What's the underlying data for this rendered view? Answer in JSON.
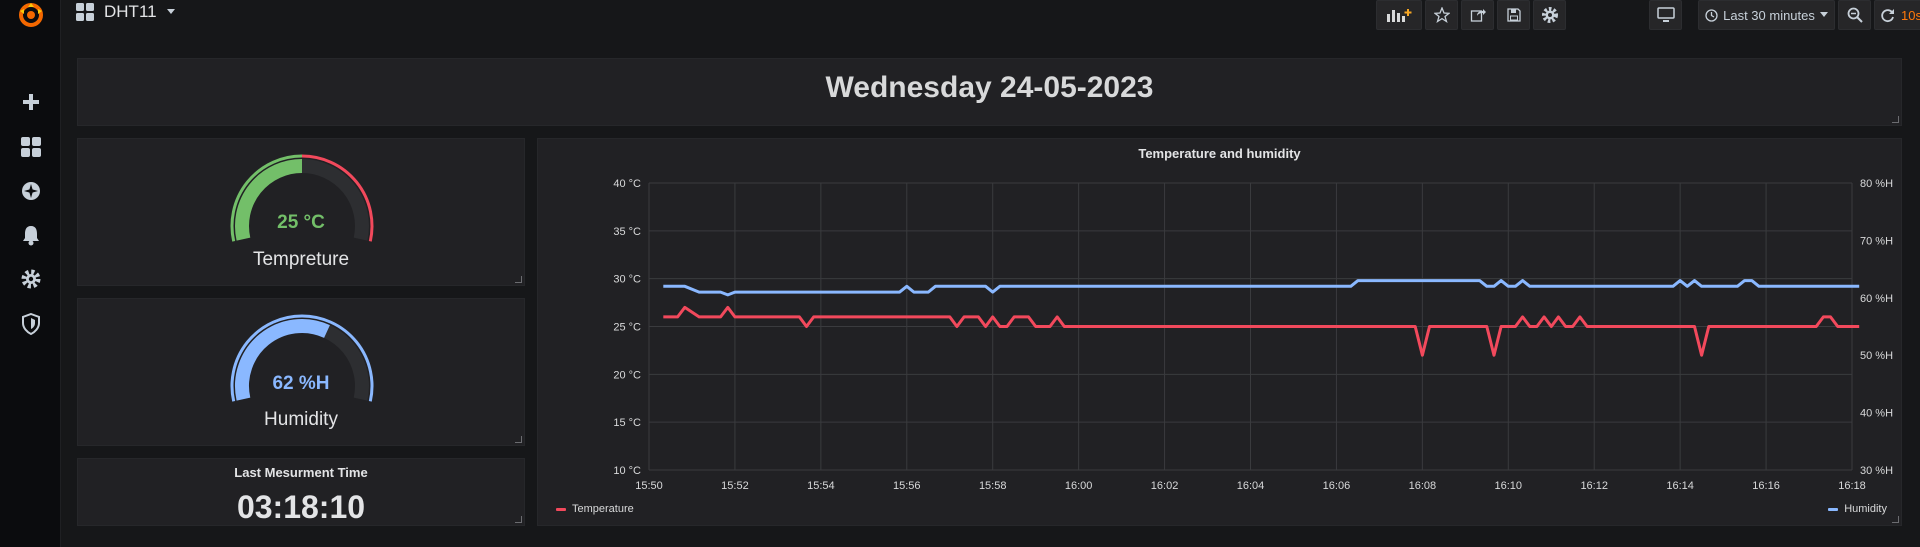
{
  "app": {
    "dashboard_title": "DHT11",
    "icons": [
      "grafana-logo",
      "plus-icon",
      "dashboards-icon",
      "explore-icon",
      "bell-icon",
      "gear-icon",
      "shield-icon"
    ]
  },
  "toolbar": {
    "time_range": "Last 30 minutes",
    "refresh_interval": "10s",
    "icons": [
      "add-panel-icon",
      "star-icon",
      "share-icon",
      "save-icon",
      "settings-icon",
      "tv-mode-icon",
      "clock-icon",
      "zoom-out-icon",
      "refresh-icon"
    ]
  },
  "date_panel": {
    "text": "Wednesday 24-05-2023"
  },
  "temperature_gauge": {
    "value": "25 °C",
    "label": "Tempreture",
    "fraction": 0.5,
    "color": "#73bf69",
    "threshold_color": "#f2495c"
  },
  "humidity_gauge": {
    "value": "62 %H",
    "label": "Humidity",
    "fraction": 0.62,
    "color": "#8ab8ff"
  },
  "last_time_panel": {
    "title": "Last Mesurment Time",
    "value": "03:18:10"
  },
  "colors": {
    "temperature": "#f2495c",
    "humidity": "#8ab8ff",
    "panel_bg": "#212124",
    "page_bg": "#161719"
  },
  "chart_data": {
    "type": "line",
    "title": "Temperature and humidity",
    "x_ticks": [
      "15:50",
      "15:52",
      "15:54",
      "15:56",
      "15:58",
      "16:00",
      "16:02",
      "16:04",
      "16:06",
      "16:08",
      "16:10",
      "16:12",
      "16:14",
      "16:16",
      "16:18"
    ],
    "x_range": [
      "15:50",
      "16:18"
    ],
    "y_left": {
      "ticks": [
        "10 °C",
        "15 °C",
        "20 °C",
        "25 °C",
        "30 °C",
        "35 °C",
        "40 °C"
      ],
      "range": [
        10,
        40
      ]
    },
    "y_right": {
      "ticks": [
        "30 %H",
        "40 %H",
        "50 %H",
        "60 %H",
        "70 %H",
        "80 %H"
      ],
      "range": [
        30,
        80
      ]
    },
    "grid": true,
    "legend_position": "bottom",
    "series": [
      {
        "name": "Temperature",
        "axis": "left",
        "color": "#f2495c",
        "points": [
          [
            "15:50:20",
            26
          ],
          [
            "15:50:40",
            26
          ],
          [
            "15:50:50",
            27
          ],
          [
            "15:51:10",
            26
          ],
          [
            "15:51:40",
            26
          ],
          [
            "15:51:50",
            27
          ],
          [
            "15:52:00",
            26
          ],
          [
            "15:53:30",
            26
          ],
          [
            "15:53:40",
            25
          ],
          [
            "15:53:50",
            26
          ],
          [
            "15:57:00",
            26
          ],
          [
            "15:57:10",
            25
          ],
          [
            "15:57:20",
            26
          ],
          [
            "15:57:40",
            26
          ],
          [
            "15:57:50",
            25
          ],
          [
            "15:58:00",
            26
          ],
          [
            "15:58:10",
            25
          ],
          [
            "15:58:20",
            25
          ],
          [
            "15:58:30",
            26
          ],
          [
            "15:58:50",
            26
          ],
          [
            "15:59:00",
            25
          ],
          [
            "15:59:20",
            25
          ],
          [
            "15:59:30",
            26
          ],
          [
            "15:59:40",
            25
          ],
          [
            "16:07:50",
            25
          ],
          [
            "16:08:00",
            22
          ],
          [
            "16:08:10",
            25
          ],
          [
            "16:09:30",
            25
          ],
          [
            "16:09:40",
            22
          ],
          [
            "16:09:50",
            25
          ],
          [
            "16:10:10",
            25
          ],
          [
            "16:10:20",
            26
          ],
          [
            "16:10:30",
            25
          ],
          [
            "16:10:40",
            25
          ],
          [
            "16:10:50",
            26
          ],
          [
            "16:11:00",
            25
          ],
          [
            "16:11:10",
            26
          ],
          [
            "16:11:20",
            25
          ],
          [
            "16:11:30",
            25
          ],
          [
            "16:11:40",
            26
          ],
          [
            "16:11:50",
            25
          ],
          [
            "16:14:20",
            25
          ],
          [
            "16:14:30",
            22
          ],
          [
            "16:14:40",
            25
          ],
          [
            "16:17:10",
            25
          ],
          [
            "16:17:20",
            26
          ],
          [
            "16:17:30",
            26
          ],
          [
            "16:17:40",
            25
          ],
          [
            "16:18:10",
            25
          ]
        ]
      },
      {
        "name": "Humidity",
        "axis": "right",
        "color": "#8ab8ff",
        "points": [
          [
            "15:50:20",
            62
          ],
          [
            "15:50:50",
            62
          ],
          [
            "15:51:10",
            61
          ],
          [
            "15:51:40",
            61
          ],
          [
            "15:51:50",
            60.5
          ],
          [
            "15:52:00",
            61
          ],
          [
            "15:55:50",
            61
          ],
          [
            "15:56:00",
            62
          ],
          [
            "15:56:10",
            61
          ],
          [
            "15:56:30",
            61
          ],
          [
            "15:56:40",
            62
          ],
          [
            "15:57:50",
            62
          ],
          [
            "15:58:00",
            61
          ],
          [
            "15:58:10",
            62
          ],
          [
            "16:06:20",
            62
          ],
          [
            "16:06:30",
            63
          ],
          [
            "16:09:20",
            63
          ],
          [
            "16:09:30",
            62
          ],
          [
            "16:09:40",
            62
          ],
          [
            "16:09:50",
            63
          ],
          [
            "16:10:00",
            62
          ],
          [
            "16:10:10",
            62
          ],
          [
            "16:10:20",
            63
          ],
          [
            "16:10:30",
            62
          ],
          [
            "16:13:50",
            62
          ],
          [
            "16:14:00",
            63
          ],
          [
            "16:14:10",
            62
          ],
          [
            "16:14:20",
            63
          ],
          [
            "16:14:30",
            62
          ],
          [
            "16:15:20",
            62
          ],
          [
            "16:15:30",
            63
          ],
          [
            "16:15:40",
            63
          ],
          [
            "16:15:50",
            62
          ],
          [
            "16:18:10",
            62
          ]
        ]
      }
    ]
  }
}
